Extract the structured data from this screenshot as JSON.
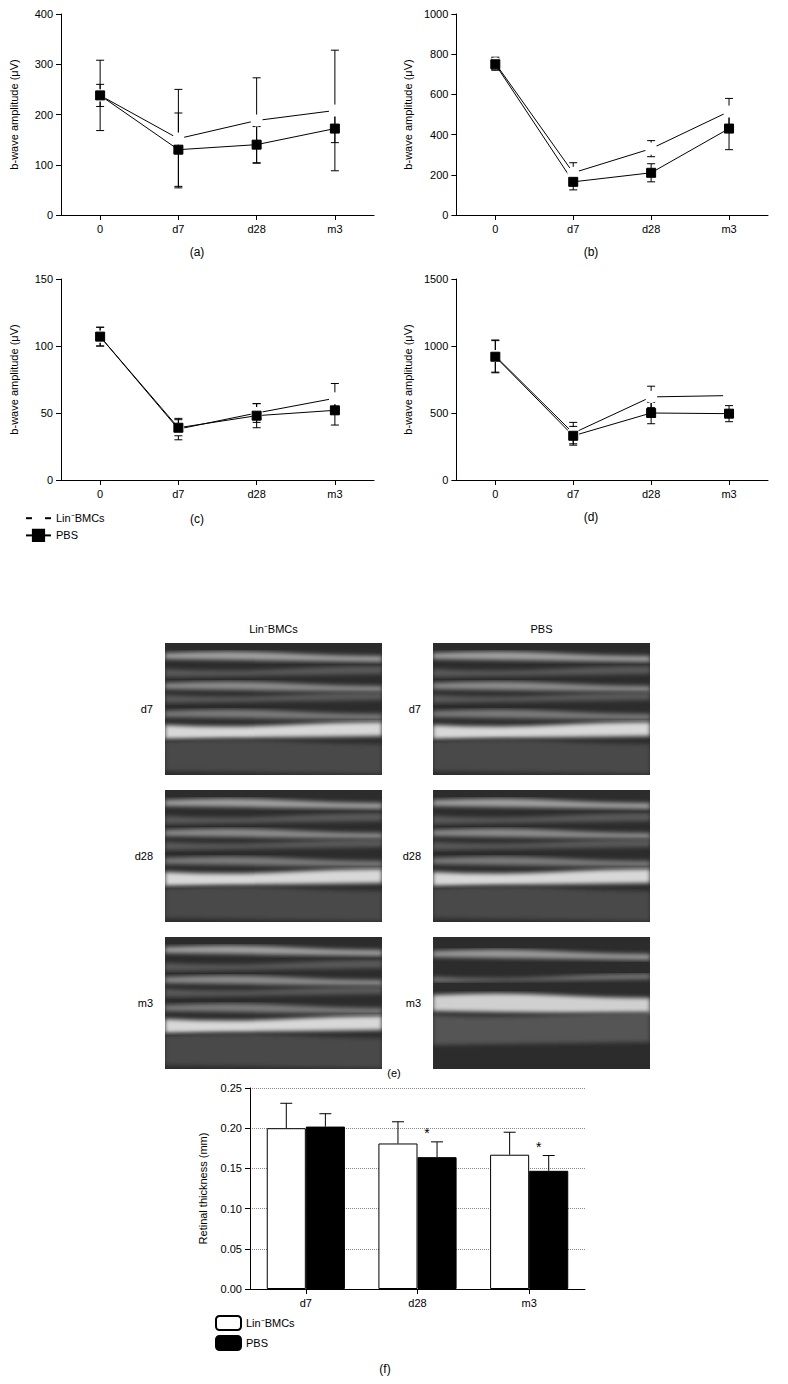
{
  "chart_data": [
    {
      "type": "line",
      "title": "(a)",
      "y_label": "b-wave amplitude (μV)",
      "categories": [
        "0",
        "d7",
        "d28",
        "m3"
      ],
      "ylim": [
        0,
        400
      ],
      "yticks": [
        0,
        100,
        200,
        300,
        400
      ],
      "grid": false,
      "series": [
        {
          "name": "Lin⁻BMCs",
          "color": "#000000",
          "marker": "circle",
          "values": [
            238,
            152,
            188,
            208
          ],
          "errors": [
            70,
            98,
            85,
            120
          ]
        },
        {
          "name": "PBS",
          "color": "#000000",
          "marker": "square",
          "values": [
            238,
            130,
            140,
            172
          ],
          "errors": [
            22,
            73,
            36,
            28
          ]
        }
      ]
    },
    {
      "type": "line",
      "title": "(b)",
      "y_label": "b-wave amplitude (μV)",
      "categories": [
        "0",
        "d7",
        "d28",
        "m3"
      ],
      "ylim": [
        0,
        1000
      ],
      "yticks": [
        0,
        200,
        400,
        600,
        800,
        1000
      ],
      "grid": false,
      "series": [
        {
          "name": "Lin⁻BMCs",
          "color": "#000000",
          "marker": "circle",
          "values": [
            755,
            210,
            330,
            515
          ],
          "errors": [
            30,
            50,
            40,
            65
          ]
        },
        {
          "name": "PBS",
          "color": "#000000",
          "marker": "square",
          "values": [
            750,
            165,
            210,
            430
          ],
          "errors": [
            30,
            40,
            45,
            105
          ]
        }
      ]
    },
    {
      "type": "line",
      "title": "(c)",
      "y_label": "b-wave amplitude (μV)",
      "categories": [
        "0",
        "d7",
        "d28",
        "m3"
      ],
      "ylim": [
        0,
        150
      ],
      "yticks": [
        0,
        50,
        100,
        150
      ],
      "grid": false,
      "legend": "bottom-left",
      "series": [
        {
          "name": "Lin⁻BMCs",
          "color": "#000000",
          "marker": "circle",
          "values": [
            107,
            38,
            50,
            61
          ],
          "errors": [
            7,
            8,
            7,
            11
          ]
        },
        {
          "name": "PBS",
          "color": "#000000",
          "marker": "square",
          "values": [
            107,
            39,
            48,
            52
          ],
          "errors": [
            7,
            6,
            9,
            11
          ]
        }
      ]
    },
    {
      "type": "line",
      "title": "(d)",
      "y_label": "b-wave amplitude (μV)",
      "categories": [
        "0",
        "d7",
        "d28",
        "m3"
      ],
      "ylim": [
        0,
        1500
      ],
      "yticks": [
        0,
        500,
        1000,
        1500
      ],
      "grid": false,
      "series": [
        {
          "name": "Lin⁻BMCs",
          "color": "#000000",
          "marker": "circle",
          "values": [
            925,
            350,
            620,
            630
          ],
          "errors": [
            120,
            80,
            80,
            20
          ]
        },
        {
          "name": "PBS",
          "color": "#000000",
          "marker": "square",
          "values": [
            920,
            330,
            500,
            495
          ],
          "errors": [
            120,
            70,
            80,
            60
          ]
        }
      ]
    },
    {
      "type": "bar",
      "title": "(f)",
      "y_label": "Retinal thickness (mm)",
      "categories": [
        "d7",
        "d28",
        "m3"
      ],
      "ylim": [
        0,
        0.25
      ],
      "yticks": [
        {
          "value": 0,
          "label": "0.00"
        },
        {
          "value": 0.05,
          "label": "0.05"
        },
        {
          "value": 0.1,
          "label": "0.10"
        },
        {
          "value": 0.15,
          "label": "0.15"
        },
        {
          "value": 0.2,
          "label": "0.20"
        },
        {
          "value": 0.25,
          "label": "0.25"
        }
      ],
      "grid": true,
      "legend": "bottom-left",
      "series": [
        {
          "name": "Lin⁻BMCs",
          "color": "#ffffff",
          "values": [
            0.2,
            0.181,
            0.167
          ],
          "errors": [
            0.031,
            0.027,
            0.028
          ]
        },
        {
          "name": "PBS",
          "color": "#000000",
          "values": [
            0.202,
            0.164,
            0.147
          ],
          "errors": [
            0.016,
            0.019,
            0.019
          ]
        }
      ],
      "annotations": [
        {
          "text": "*",
          "category": "d28",
          "series": "PBS"
        },
        {
          "text": "*",
          "category": "m3",
          "series": "PBS"
        }
      ]
    }
  ],
  "image_panel": {
    "label": "(e)",
    "columns": [
      "Lin⁻BMCs",
      "PBS"
    ],
    "rows": [
      "d7",
      "d28",
      "m3"
    ]
  }
}
